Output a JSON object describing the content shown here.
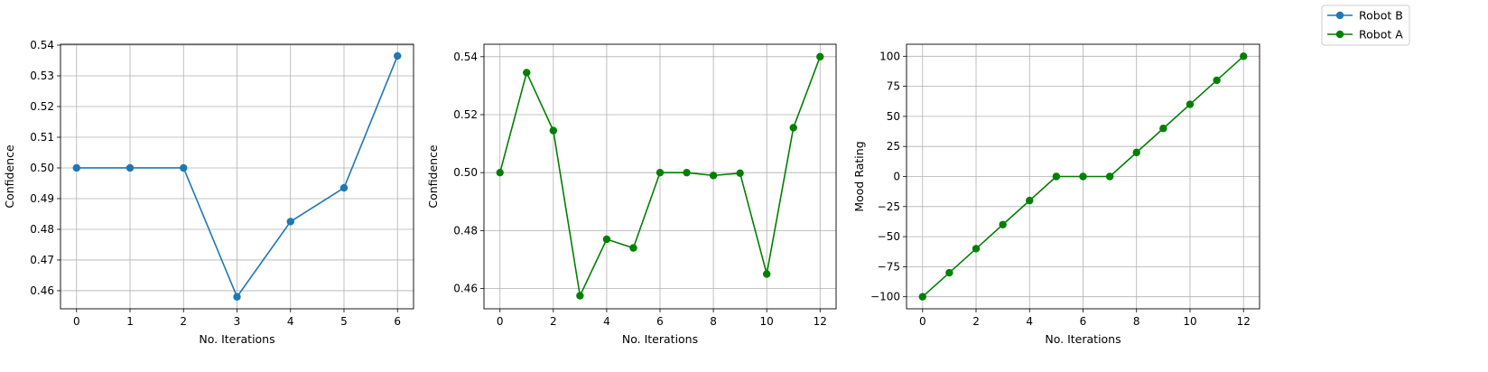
{
  "legend": {
    "placement": "top-right",
    "entries": [
      {
        "label": "Robot B",
        "color": "#1f77b4",
        "marker": "circle"
      },
      {
        "label": "Robot A",
        "color": "#008000",
        "marker": "circle"
      }
    ]
  },
  "chart_data": [
    {
      "type": "line",
      "xlabel": "No. Iterations",
      "ylabel": "Confidence",
      "grid": true,
      "xlim": [
        -0.3,
        6.3
      ],
      "ylim": [
        0.4541,
        0.5403
      ],
      "xticks": [
        0,
        1,
        2,
        3,
        4,
        5,
        6
      ],
      "xtick_labels": [
        "0",
        "1",
        "2",
        "3",
        "4",
        "5",
        "6"
      ],
      "yticks": [
        0.46,
        0.47,
        0.48,
        0.49,
        0.5,
        0.51,
        0.52,
        0.53,
        0.54
      ],
      "ytick_labels": [
        "0.46",
        "0.47",
        "0.48",
        "0.49",
        "0.50",
        "0.51",
        "0.52",
        "0.53",
        "0.54"
      ],
      "series": [
        {
          "color": "#1f77b4",
          "x": [
            0,
            1,
            2,
            3,
            4,
            5,
            6
          ],
          "y": [
            0.5,
            0.5,
            0.5,
            0.458,
            0.4825,
            0.4935,
            0.5365
          ]
        }
      ]
    },
    {
      "type": "line",
      "xlabel": "No. Iterations",
      "ylabel": "Confidence",
      "grid": true,
      "xlim": [
        -0.6,
        12.6
      ],
      "ylim": [
        0.453,
        0.5443
      ],
      "xticks": [
        0,
        2,
        4,
        6,
        8,
        10,
        12
      ],
      "xtick_labels": [
        "0",
        "2",
        "4",
        "6",
        "8",
        "10",
        "12"
      ],
      "yticks": [
        0.46,
        0.48,
        0.5,
        0.52,
        0.54
      ],
      "ytick_labels": [
        "0.46",
        "0.48",
        "0.50",
        "0.52",
        "0.54"
      ],
      "series": [
        {
          "color": "#008000",
          "x": [
            0,
            1,
            2,
            3,
            4,
            5,
            6,
            7,
            8,
            9,
            10,
            11,
            12
          ],
          "y": [
            0.5,
            0.5345,
            0.5145,
            0.4575,
            0.477,
            0.474,
            0.5,
            0.5,
            0.499,
            0.4998,
            0.465,
            0.5155,
            0.54
          ]
        }
      ]
    },
    {
      "type": "line",
      "xlabel": "No. Iterations",
      "ylabel": "Mood Rating",
      "grid": true,
      "xlim": [
        -0.6,
        12.6
      ],
      "ylim": [
        -110,
        110
      ],
      "xticks": [
        0,
        2,
        4,
        6,
        8,
        10,
        12
      ],
      "xtick_labels": [
        "0",
        "2",
        "4",
        "6",
        "8",
        "10",
        "12"
      ],
      "yticks": [
        -100,
        -75,
        -50,
        -25,
        0,
        25,
        50,
        75,
        100
      ],
      "ytick_labels": [
        "−100",
        "−75",
        "−50",
        "−25",
        "0",
        "25",
        "50",
        "75",
        "100"
      ],
      "series": [
        {
          "color": "#008000",
          "x": [
            0,
            1,
            2,
            3,
            4,
            5,
            6,
            7,
            8,
            9,
            10,
            11,
            12
          ],
          "y": [
            -100,
            -80,
            -60,
            -40,
            -20,
            0,
            0,
            0,
            20,
            40,
            60,
            80,
            100
          ]
        }
      ]
    }
  ]
}
